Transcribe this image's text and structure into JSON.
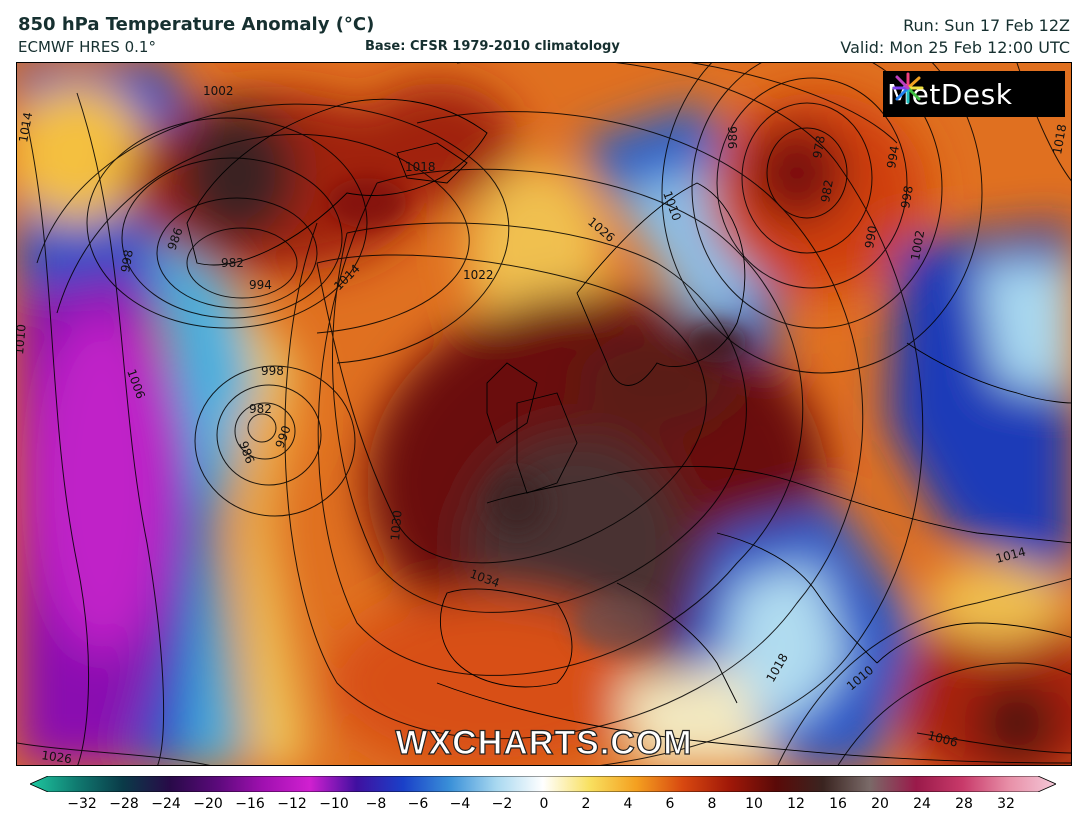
{
  "header": {
    "title": "850 hPa Temperature Anomaly (°C)",
    "subtitle": "ECMWF HRES 0.1°",
    "base": "Base: CFSR 1979-2010 climatology",
    "run": "Run: Sun 17 Feb 12Z",
    "valid": "Valid: Mon 25 Feb 12:00 UTC"
  },
  "brand": {
    "logo_text": "MetDesk",
    "watermark": "WXCHARTS.COM"
  },
  "isobar_labels": [
    "1002",
    "1014",
    "986",
    "982",
    "994",
    "998",
    "1018",
    "1014",
    "1022",
    "1026",
    "1010",
    "986",
    "978",
    "982",
    "994",
    "998",
    "990",
    "1002",
    "1018",
    "998",
    "982",
    "990",
    "986",
    "1006",
    "1010",
    "1030",
    "1034",
    "1018",
    "1010",
    "1014",
    "1006",
    "1026",
    "1018",
    "1010"
  ],
  "colorbar": {
    "ticks": [
      "−32",
      "−28",
      "−24",
      "−20",
      "−16",
      "−12",
      "−10",
      "−8",
      "−6",
      "−4",
      "−2",
      "0",
      "2",
      "4",
      "6",
      "8",
      "10",
      "12",
      "16",
      "20",
      "24",
      "28",
      "32"
    ],
    "colors": [
      "#1ec8a0",
      "#107a70",
      "#0a3a48",
      "#280a48",
      "#5a0a7a",
      "#a010b0",
      "#d020d0",
      "#4010a0",
      "#1a40c8",
      "#3a90d8",
      "#a8d8f0",
      "#ffffff",
      "#f8e060",
      "#f4a020",
      "#d84810",
      "#a01808",
      "#5a0a08",
      "#3a2420",
      "#7a6a68",
      "#9a1a4a",
      "#c83a6a",
      "#e890a8",
      "#f4c8d8"
    ]
  }
}
